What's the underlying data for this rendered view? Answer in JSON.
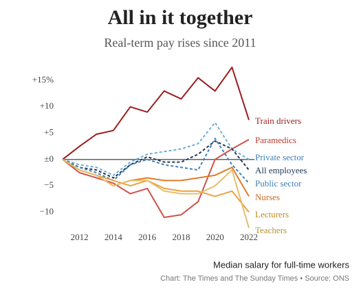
{
  "chart_data": {
    "type": "line",
    "title": "All in it together",
    "subtitle": "Real-term pay rises since 2011",
    "note": "Median salary for full-time workers",
    "source": "Chart: The Times and The Sunday Times • Source: ONS",
    "x": [
      2011,
      2012,
      2013,
      2014,
      2015,
      2016,
      2017,
      2018,
      2019,
      2020,
      2021,
      2022
    ],
    "xlim": [
      2011,
      2022
    ],
    "xticks": [
      2012,
      2014,
      2016,
      2018,
      2020,
      2022
    ],
    "ylim": [
      -14,
      18
    ],
    "yticks": [
      {
        "value": 15,
        "label": "+15%"
      },
      {
        "value": 10,
        "label": "+10"
      },
      {
        "value": 5,
        "label": "+5"
      },
      {
        "value": 0,
        "label": "±0"
      },
      {
        "value": -5,
        "label": "−5"
      },
      {
        "value": -10,
        "label": "−10"
      }
    ],
    "series": [
      {
        "name": "Train drivers",
        "color": "#9b1c1c",
        "style": "solid",
        "values": [
          0,
          2.5,
          4.8,
          5.5,
          10,
          9,
          13,
          11.5,
          15.5,
          13,
          17.5,
          7.5
        ]
      },
      {
        "name": "Paramedics",
        "color": "#d0504a",
        "style": "solid",
        "values": [
          0,
          -2.5,
          -3.5,
          -4.5,
          -6.5,
          -5.5,
          -11,
          -10.5,
          -8,
          0,
          2,
          3.8
        ]
      },
      {
        "name": "Private sector",
        "color": "#6aaed6",
        "style": "dashed",
        "values": [
          0,
          -1,
          -1.5,
          -3,
          -0.5,
          1,
          1.5,
          2,
          3,
          7,
          2,
          0
        ]
      },
      {
        "name": "All employees",
        "color": "#1d3557",
        "style": "dashed",
        "values": [
          0,
          -1.5,
          -2,
          -3.5,
          -1,
          0.5,
          -0.5,
          -0.5,
          1,
          3.5,
          2,
          -2
        ]
      },
      {
        "name": "Public sector",
        "color": "#3f7fb5",
        "style": "dashed",
        "values": [
          0,
          -1.5,
          -2.5,
          -4,
          -1,
          0,
          -1,
          -1.5,
          -2,
          4,
          -1,
          -4.5
        ]
      },
      {
        "name": "Nurses",
        "color": "#e07b2a",
        "style": "solid",
        "values": [
          0,
          -2,
          -3,
          -5,
          -4,
          -3.5,
          -4,
          -4,
          -3.5,
          -3,
          -1.5,
          -7
        ]
      },
      {
        "name": "Lecturers",
        "color": "#e9a23b",
        "style": "solid",
        "values": [
          0,
          -2,
          -3,
          -4,
          -5,
          -4,
          -5.5,
          -6,
          -6,
          -7,
          -6,
          -10
        ]
      },
      {
        "name": "Teachers",
        "color": "#e8bd6a",
        "style": "solid",
        "values": [
          0,
          -2,
          -3,
          -5,
          -4,
          -4,
          -6,
          -6.5,
          -6.5,
          -5,
          -2,
          -13
        ]
      }
    ]
  }
}
